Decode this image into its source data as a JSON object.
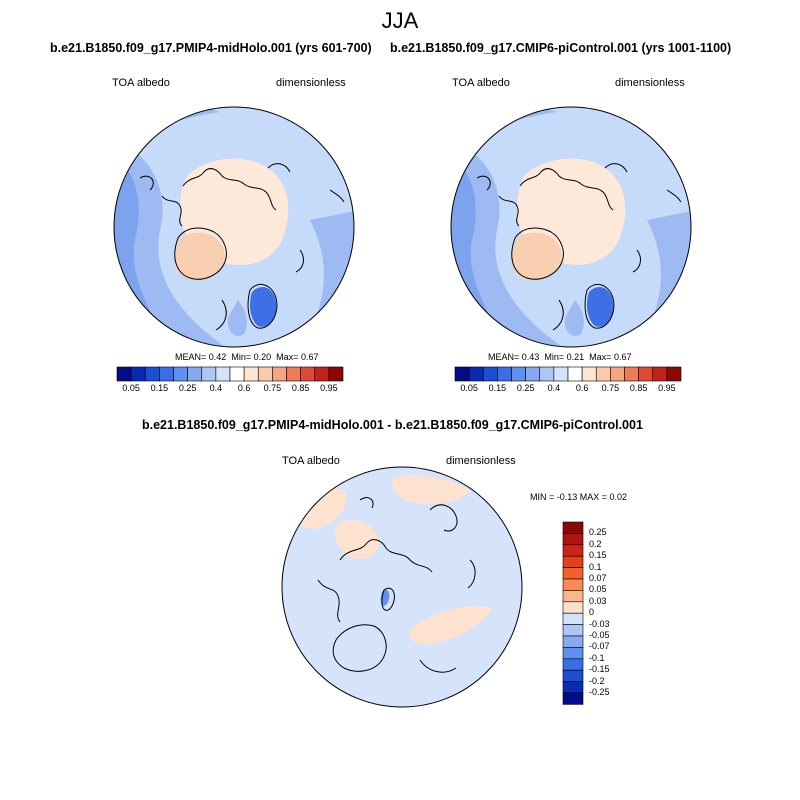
{
  "figure": {
    "season": "JJA"
  },
  "panels": [
    {
      "title": "b.e21.B1850.f09_g17.PMIP4-midHolo.001 (yrs 601-700)",
      "variable": "TOA albedo",
      "units": "dimensionless",
      "stats": {
        "mean_label": "MEAN=",
        "mean": "0.42",
        "min_label": "Min=",
        "min": "0.20",
        "max_label": "Max=",
        "max": "0.67"
      }
    },
    {
      "title": "b.e21.B1850.f09_g17.CMIP6-piControl.001 (yrs 1001-1100)",
      "variable": "TOA albedo",
      "units": "dimensionless",
      "stats": {
        "mean_label": "MEAN=",
        "mean": "0.43",
        "min_label": "Min=",
        "min": "0.21",
        "max_label": "Max=",
        "max": "0.67"
      }
    }
  ],
  "diff_panel": {
    "title": "b.e21.B1850.f09_g17.PMIP4-midHolo.001 - b.e21.B1850.f09_g17.CMIP6-piControl.001",
    "variable": "TOA albedo",
    "units": "dimensionless",
    "stats_label": "MIN =  -0.13 MAX =   0.02"
  },
  "colorbar_abs": {
    "labels": [
      "0.05",
      "0.15",
      "0.25",
      "0.4",
      "0.6",
      "0.75",
      "0.85",
      "0.95"
    ],
    "colors": [
      "#040b88",
      "#0b2ab4",
      "#1c4fd6",
      "#3a6ee6",
      "#5f8ff0",
      "#86aaf2",
      "#aec6f6",
      "#d2e2fb",
      "#ffffff",
      "#fde5d0",
      "#fbcaab",
      "#f6a583",
      "#ee7a5a",
      "#de4a34",
      "#c0221c",
      "#8e0707"
    ]
  },
  "colorbar_diff": {
    "labels": [
      "0.25",
      "0.2",
      "0.15",
      "0.1",
      "0.07",
      "0.05",
      "0.03",
      "0",
      "-0.03",
      "-0.05",
      "-0.07",
      "-0.1",
      "-0.15",
      "-0.2",
      "-0.25"
    ],
    "colors": [
      "#8e0707",
      "#b01410",
      "#cc2416",
      "#e53f1c",
      "#f35f2c",
      "#f98a55",
      "#fcb68b",
      "#fde0c8",
      "#d2e2fb",
      "#aec6f6",
      "#86aaf2",
      "#5f8ff0",
      "#3a6ee6",
      "#1c4fd6",
      "#0b2ab4",
      "#040b88"
    ]
  },
  "map_colors": {
    "ocean_deep": "#7da2ee",
    "ocean_mid": "#9dbaf2",
    "ocean_light": "#c6dafa",
    "ice": "#fde9d9",
    "greenland": "#f9cfb1",
    "scand": "#3f6fe4",
    "diff_bg": "#d5e4fb",
    "diff_pos": "#fde3cf"
  }
}
